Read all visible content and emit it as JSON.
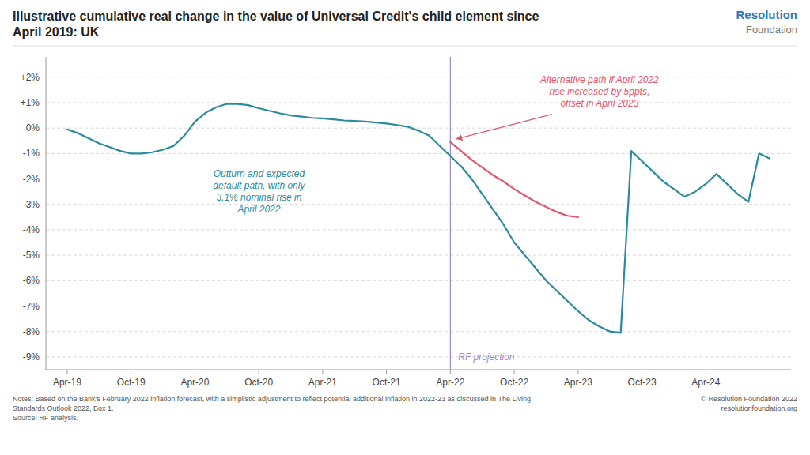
{
  "chart_data": {
    "type": "line",
    "title": "Illustrative cumulative real change in the value of Universal Credit's child element since\nApril 2019: UK",
    "branding": [
      "Resolution",
      "Foundation"
    ],
    "notes": [
      "Notes: Based on the Bank's February 2022 inflation forecast, with a simplistic adjustment to reflect potential additional inflation in 2022-23 as discussed in The Living\nStandards Outlook 2022, Box 1.\nSource: RF analysis.",
      "© Resolution Foundation 2022\nresolutionfoundation.org"
    ],
    "annotations": [
      {
        "text": "Outturn and expected\ndefault path, with only\n3.1% nominal rise in\nApril 2022",
        "color": "#2A8A9E"
      },
      {
        "text": "Alternative path if April 2022\nrise increased by 5ppts,\noffset in April 2023",
        "color": "#E0566A"
      },
      {
        "text": "RF projection",
        "color": "#9B8BBF"
      }
    ],
    "reference_line": {
      "x": 36,
      "color": "#9B8BBF"
    },
    "series": [
      {
        "color": "#2A8A9E",
        "x": [
          0,
          1,
          2,
          3,
          4,
          5,
          6,
          7,
          8,
          9,
          10,
          11,
          12,
          13,
          14,
          15,
          16,
          17,
          18,
          19,
          20,
          21,
          22,
          23,
          24,
          25,
          26,
          27,
          28,
          29,
          30,
          31,
          32,
          33,
          34,
          35,
          36,
          37,
          38,
          39,
          40,
          41,
          42,
          43,
          44,
          45,
          46,
          47,
          48,
          49,
          50,
          51,
          52,
          53,
          54,
          55,
          56,
          57,
          58,
          59,
          60,
          61,
          62,
          63,
          64,
          65,
          66
        ],
        "values": [
          -0.05,
          -0.2,
          -0.4,
          -0.6,
          -0.75,
          -0.9,
          -1.0,
          -1.0,
          -0.95,
          -0.85,
          -0.7,
          -0.3,
          0.25,
          0.6,
          0.82,
          0.95,
          0.95,
          0.9,
          0.78,
          0.68,
          0.58,
          0.5,
          0.45,
          0.4,
          0.38,
          0.34,
          0.3,
          0.28,
          0.26,
          0.22,
          0.18,
          0.12,
          0.05,
          -0.1,
          -0.3,
          -0.7,
          -1.1,
          -1.5,
          -2.0,
          -2.6,
          -3.2,
          -3.8,
          -4.5,
          -5.0,
          -5.5,
          -6.0,
          -6.4,
          -6.8,
          -7.2,
          -7.55,
          -7.8,
          -8.0,
          -8.05,
          -0.9,
          -1.3,
          -1.7,
          -2.1,
          -2.4,
          -2.7,
          -2.5,
          -2.2,
          -1.8,
          -2.2,
          -2.6,
          -2.9,
          -1.0,
          -1.2
        ]
      },
      {
        "color": "#E0566A",
        "x": [
          36,
          37,
          38,
          39,
          40,
          41,
          42,
          43,
          44,
          45,
          46,
          47,
          48
        ],
        "values": [
          -0.55,
          -0.9,
          -1.25,
          -1.55,
          -1.85,
          -2.1,
          -2.4,
          -2.65,
          -2.9,
          -3.1,
          -3.3,
          -3.45,
          -3.5
        ]
      }
    ],
    "xlim": [
      -2,
      68
    ],
    "xticks": [
      {
        "value": 0,
        "label": "Apr-19"
      },
      {
        "value": 6,
        "label": "Oct-19"
      },
      {
        "value": 12,
        "label": "Apr-20"
      },
      {
        "value": 18,
        "label": "Oct-20"
      },
      {
        "value": 24,
        "label": "Apr-21"
      },
      {
        "value": 30,
        "label": "Oct-21"
      },
      {
        "value": 36,
        "label": "Apr-22"
      },
      {
        "value": 42,
        "label": "Oct-22"
      },
      {
        "value": 48,
        "label": "Apr-23"
      },
      {
        "value": 54,
        "label": "Oct-23"
      },
      {
        "value": 60,
        "label": "Apr-24"
      }
    ],
    "ylim": [
      -9.5,
      2.8
    ],
    "yticks": [
      {
        "value": -9,
        "label": "-9%"
      },
      {
        "value": -8,
        "label": "-8%"
      },
      {
        "value": -7,
        "label": "-7%"
      },
      {
        "value": -6,
        "label": "-6%"
      },
      {
        "value": -5,
        "label": "-5%"
      },
      {
        "value": -4,
        "label": "-4%"
      },
      {
        "value": -3,
        "label": "-3%"
      },
      {
        "value": -2,
        "label": "-2%"
      },
      {
        "value": -1,
        "label": "-1%"
      },
      {
        "value": 0,
        "label": "0%"
      },
      {
        "value": 1,
        "label": "+1%"
      },
      {
        "value": 2,
        "label": "+2%"
      }
    ],
    "grid": true
  }
}
